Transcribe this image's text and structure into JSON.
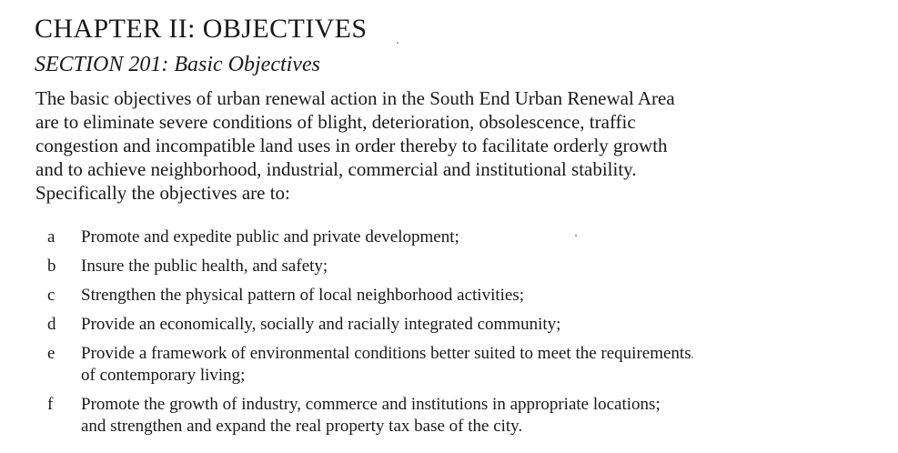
{
  "chapter": {
    "title": "CHAPTER II:  OBJECTIVES"
  },
  "section": {
    "title": "SECTION 201:  Basic Objectives"
  },
  "intro": {
    "lines": [
      "The basic objectives of urban renewal action in the South End Urban Renewal Area",
      "are to eliminate severe conditions of blight, deterioration, obsolescence, traffic",
      "congestion and incompatible land uses in order thereby to facilitate orderly growth",
      "and to achieve neighborhood, industrial, commercial and institutional stability.",
      "Specifically the objectives are to:"
    ]
  },
  "objectives": [
    {
      "letter": "a",
      "lines": [
        "Promote and expedite public and private development;"
      ]
    },
    {
      "letter": "b",
      "lines": [
        "Insure the public health, and safety;"
      ]
    },
    {
      "letter": "c",
      "lines": [
        "Strengthen the physical pattern of local neighborhood activities;"
      ]
    },
    {
      "letter": "d",
      "lines": [
        "Provide an economically, socially and racially integrated community;"
      ]
    },
    {
      "letter": "e",
      "lines": [
        "Provide a framework of environmental conditions better suited to meet the requirements",
        "of contemporary living;"
      ]
    },
    {
      "letter": "f",
      "lines": [
        "Promote the growth of industry, commerce and institutions in appropriate locations;",
        "and strengthen and expand the real property tax base of the city."
      ]
    }
  ]
}
